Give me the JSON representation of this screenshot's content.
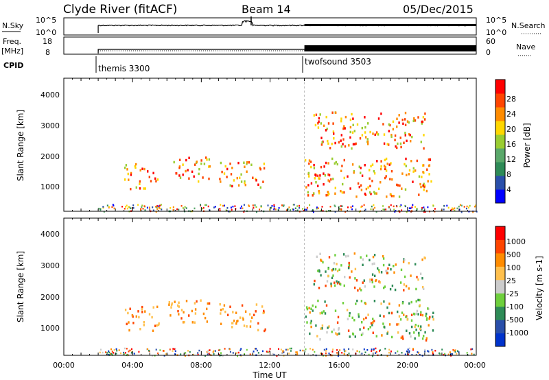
{
  "header": {
    "station": "Clyde River (fitACF)",
    "beam": "Beam 14",
    "date": "05/Dec/2015"
  },
  "strips": {
    "nsky_label": "N.Sky",
    "nsky_ticks": [
      "10^5",
      "10^0"
    ],
    "nsearch_label": "N.Search",
    "nsearch_ticks": [
      "10^5",
      "10^0"
    ],
    "freq_label_1": "Freq.",
    "freq_label_2": "[MHz]",
    "freq_ticks": [
      "18",
      "8"
    ],
    "nave_label": "Nave",
    "nave_ticks": [
      "60",
      "0"
    ],
    "cpid_label": "CPID",
    "cpid_segments": [
      {
        "name": "themis 3300",
        "start_hour": 2.0
      },
      {
        "name": "twofsound 3503",
        "start_hour": 14.0
      }
    ]
  },
  "colors": {
    "power_scale": [
      "#0000ff",
      "#2a4faa",
      "#2e8b57",
      "#5aa86a",
      "#9acd32",
      "#ffd700",
      "#ff8c00",
      "#ff4500",
      "#ff0000"
    ],
    "velocity_scale": [
      "#ff0000",
      "#ff4500",
      "#ff8c00",
      "#ffc04d",
      "#cccccc",
      "#6ecf3c",
      "#2e8b57",
      "#2a4faa",
      "#0033cc"
    ]
  },
  "chart_data": [
    {
      "type": "heatmap",
      "name": "Power panel",
      "ylabel": "Slant Range [km]",
      "xlabel": "",
      "xlim": [
        0,
        24
      ],
      "ylim": [
        180,
        4600
      ],
      "yticks": [
        "1000",
        "2000",
        "3000",
        "4000"
      ],
      "colorbar_label": "Power [dB]",
      "colorbar_ticks": [
        "4",
        "8",
        "12",
        "16",
        "20",
        "24",
        "28"
      ],
      "colorbar_range": [
        0,
        32
      ],
      "scatter_regions": [
        {
          "t0": 3.5,
          "t1": 5.5,
          "r0": 950,
          "r1": 1800
        },
        {
          "t0": 6.0,
          "t1": 8.5,
          "r0": 1200,
          "r1": 2000
        },
        {
          "t0": 9.0,
          "t1": 11.7,
          "r0": 1000,
          "r1": 1900
        },
        {
          "t0": 14.0,
          "t1": 21.5,
          "r0": 700,
          "r1": 2000
        },
        {
          "t0": 14.5,
          "t1": 21.0,
          "r0": 2300,
          "r1": 3500
        }
      ]
    },
    {
      "type": "heatmap",
      "name": "Velocity panel",
      "ylabel": "Slant Range [km]",
      "xlabel": "Time UT",
      "xlim": [
        0,
        24
      ],
      "ylim": [
        180,
        4600
      ],
      "xticks": [
        "00:00",
        "04:00",
        "08:00",
        "12:00",
        "16:00",
        "20:00",
        "00:00"
      ],
      "yticks": [
        "1000",
        "2000",
        "3000",
        "4000"
      ],
      "colorbar_label": "Velocity [m s-1]",
      "colorbar_ticks": [
        "1000",
        "500",
        "100",
        "25",
        "-25",
        "-100",
        "-500",
        "-1000"
      ],
      "scatter_regions": [
        {
          "t0": 3.5,
          "t1": 5.5,
          "r0": 950,
          "r1": 1800
        },
        {
          "t0": 6.0,
          "t1": 8.5,
          "r0": 1200,
          "r1": 2000
        },
        {
          "t0": 9.0,
          "t1": 11.7,
          "r0": 1000,
          "r1": 1900
        },
        {
          "t0": 14.0,
          "t1": 21.5,
          "r0": 700,
          "r1": 2000
        },
        {
          "t0": 14.5,
          "t1": 21.0,
          "r0": 2300,
          "r1": 3500
        }
      ]
    }
  ]
}
